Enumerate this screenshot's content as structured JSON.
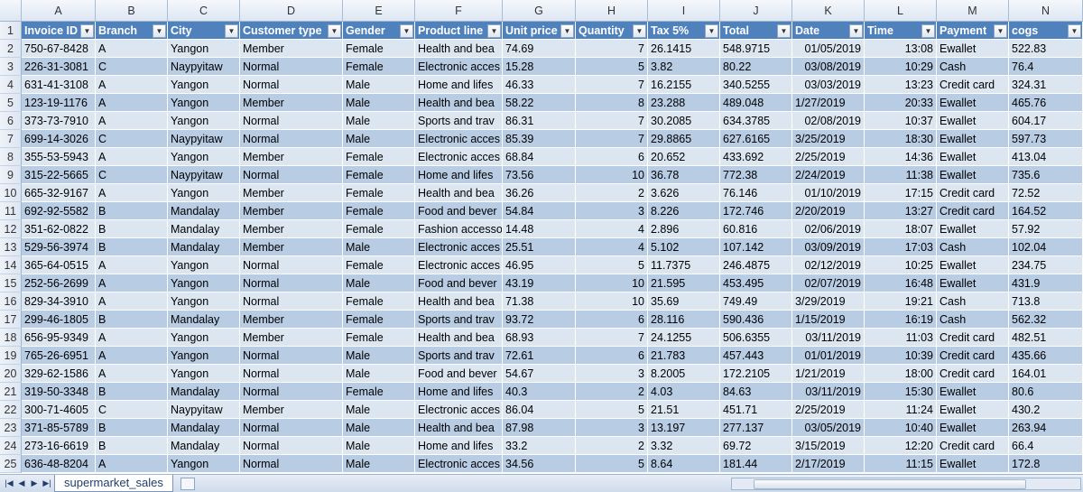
{
  "column_letters": [
    "A",
    "B",
    "C",
    "D",
    "E",
    "F",
    "G",
    "H",
    "I",
    "J",
    "K",
    "L",
    "M",
    "N"
  ],
  "headers": [
    "Invoice ID",
    "Branch",
    "City",
    "Customer type",
    "Gender",
    "Product line",
    "Unit price",
    "Quantity",
    "Tax 5%",
    "Total",
    "Date",
    "Time",
    "Payment",
    "cogs"
  ],
  "row_numbers": [
    "1",
    "2",
    "3",
    "4",
    "5",
    "6",
    "7",
    "8",
    "9",
    "10",
    "11",
    "12",
    "13",
    "14",
    "15",
    "16",
    "17",
    "18",
    "19",
    "20",
    "21",
    "22",
    "23",
    "24",
    "25"
  ],
  "rows": [
    [
      "750-67-8428",
      "A",
      "Yangon",
      "Member",
      "Female",
      "Health and bea",
      "74.69",
      "7",
      "26.1415",
      "548.9715",
      "01/05/2019",
      "13:08",
      "Ewallet",
      "522.83"
    ],
    [
      "226-31-3081",
      "C",
      "Naypyitaw",
      "Normal",
      "Female",
      "Electronic acces",
      "15.28",
      "5",
      "3.82",
      "80.22",
      "03/08/2019",
      "10:29",
      "Cash",
      "76.4"
    ],
    [
      "631-41-3108",
      "A",
      "Yangon",
      "Normal",
      "Male",
      "Home and lifes",
      "46.33",
      "7",
      "16.2155",
      "340.5255",
      "03/03/2019",
      "13:23",
      "Credit card",
      "324.31"
    ],
    [
      "123-19-1176",
      "A",
      "Yangon",
      "Member",
      "Male",
      "Health and bea",
      "58.22",
      "8",
      "23.288",
      "489.048",
      "1/27/2019",
      "20:33",
      "Ewallet",
      "465.76"
    ],
    [
      "373-73-7910",
      "A",
      "Yangon",
      "Normal",
      "Male",
      "Sports and trav",
      "86.31",
      "7",
      "30.2085",
      "634.3785",
      "02/08/2019",
      "10:37",
      "Ewallet",
      "604.17"
    ],
    [
      "699-14-3026",
      "C",
      "Naypyitaw",
      "Normal",
      "Male",
      "Electronic acces",
      "85.39",
      "7",
      "29.8865",
      "627.6165",
      "3/25/2019",
      "18:30",
      "Ewallet",
      "597.73"
    ],
    [
      "355-53-5943",
      "A",
      "Yangon",
      "Member",
      "Female",
      "Electronic acces",
      "68.84",
      "6",
      "20.652",
      "433.692",
      "2/25/2019",
      "14:36",
      "Ewallet",
      "413.04"
    ],
    [
      "315-22-5665",
      "C",
      "Naypyitaw",
      "Normal",
      "Female",
      "Home and lifes",
      "73.56",
      "10",
      "36.78",
      "772.38",
      "2/24/2019",
      "11:38",
      "Ewallet",
      "735.6"
    ],
    [
      "665-32-9167",
      "A",
      "Yangon",
      "Member",
      "Female",
      "Health and bea",
      "36.26",
      "2",
      "3.626",
      "76.146",
      "01/10/2019",
      "17:15",
      "Credit card",
      "72.52"
    ],
    [
      "692-92-5582",
      "B",
      "Mandalay",
      "Member",
      "Female",
      "Food and bever",
      "54.84",
      "3",
      "8.226",
      "172.746",
      "2/20/2019",
      "13:27",
      "Credit card",
      "164.52"
    ],
    [
      "351-62-0822",
      "B",
      "Mandalay",
      "Member",
      "Female",
      "Fashion accesso",
      "14.48",
      "4",
      "2.896",
      "60.816",
      "02/06/2019",
      "18:07",
      "Ewallet",
      "57.92"
    ],
    [
      "529-56-3974",
      "B",
      "Mandalay",
      "Member",
      "Male",
      "Electronic acces",
      "25.51",
      "4",
      "5.102",
      "107.142",
      "03/09/2019",
      "17:03",
      "Cash",
      "102.04"
    ],
    [
      "365-64-0515",
      "A",
      "Yangon",
      "Normal",
      "Female",
      "Electronic acces",
      "46.95",
      "5",
      "11.7375",
      "246.4875",
      "02/12/2019",
      "10:25",
      "Ewallet",
      "234.75"
    ],
    [
      "252-56-2699",
      "A",
      "Yangon",
      "Normal",
      "Male",
      "Food and bever",
      "43.19",
      "10",
      "21.595",
      "453.495",
      "02/07/2019",
      "16:48",
      "Ewallet",
      "431.9"
    ],
    [
      "829-34-3910",
      "A",
      "Yangon",
      "Normal",
      "Female",
      "Health and bea",
      "71.38",
      "10",
      "35.69",
      "749.49",
      "3/29/2019",
      "19:21",
      "Cash",
      "713.8"
    ],
    [
      "299-46-1805",
      "B",
      "Mandalay",
      "Member",
      "Female",
      "Sports and trav",
      "93.72",
      "6",
      "28.116",
      "590.436",
      "1/15/2019",
      "16:19",
      "Cash",
      "562.32"
    ],
    [
      "656-95-9349",
      "A",
      "Yangon",
      "Member",
      "Female",
      "Health and bea",
      "68.93",
      "7",
      "24.1255",
      "506.6355",
      "03/11/2019",
      "11:03",
      "Credit card",
      "482.51"
    ],
    [
      "765-26-6951",
      "A",
      "Yangon",
      "Normal",
      "Male",
      "Sports and trav",
      "72.61",
      "6",
      "21.783",
      "457.443",
      "01/01/2019",
      "10:39",
      "Credit card",
      "435.66"
    ],
    [
      "329-62-1586",
      "A",
      "Yangon",
      "Normal",
      "Male",
      "Food and bever",
      "54.67",
      "3",
      "8.2005",
      "172.2105",
      "1/21/2019",
      "18:00",
      "Credit card",
      "164.01"
    ],
    [
      "319-50-3348",
      "B",
      "Mandalay",
      "Normal",
      "Female",
      "Home and lifes",
      "40.3",
      "2",
      "4.03",
      "84.63",
      "03/11/2019",
      "15:30",
      "Ewallet",
      "80.6"
    ],
    [
      "300-71-4605",
      "C",
      "Naypyitaw",
      "Member",
      "Male",
      "Electronic acces",
      "86.04",
      "5",
      "21.51",
      "451.71",
      "2/25/2019",
      "11:24",
      "Ewallet",
      "430.2"
    ],
    [
      "371-85-5789",
      "B",
      "Mandalay",
      "Normal",
      "Male",
      "Health and bea",
      "87.98",
      "3",
      "13.197",
      "277.137",
      "03/05/2019",
      "10:40",
      "Ewallet",
      "263.94"
    ],
    [
      "273-16-6619",
      "B",
      "Mandalay",
      "Normal",
      "Male",
      "Home and lifes",
      "33.2",
      "2",
      "3.32",
      "69.72",
      "3/15/2019",
      "12:20",
      "Credit card",
      "66.4"
    ],
    [
      "636-48-8204",
      "A",
      "Yangon",
      "Normal",
      "Male",
      "Electronic acces",
      "34.56",
      "5",
      "8.64",
      "181.44",
      "2/17/2019",
      "11:15",
      "Ewallet",
      "172.8"
    ]
  ],
  "sheet_tabs": [
    "supermarket_sales"
  ]
}
